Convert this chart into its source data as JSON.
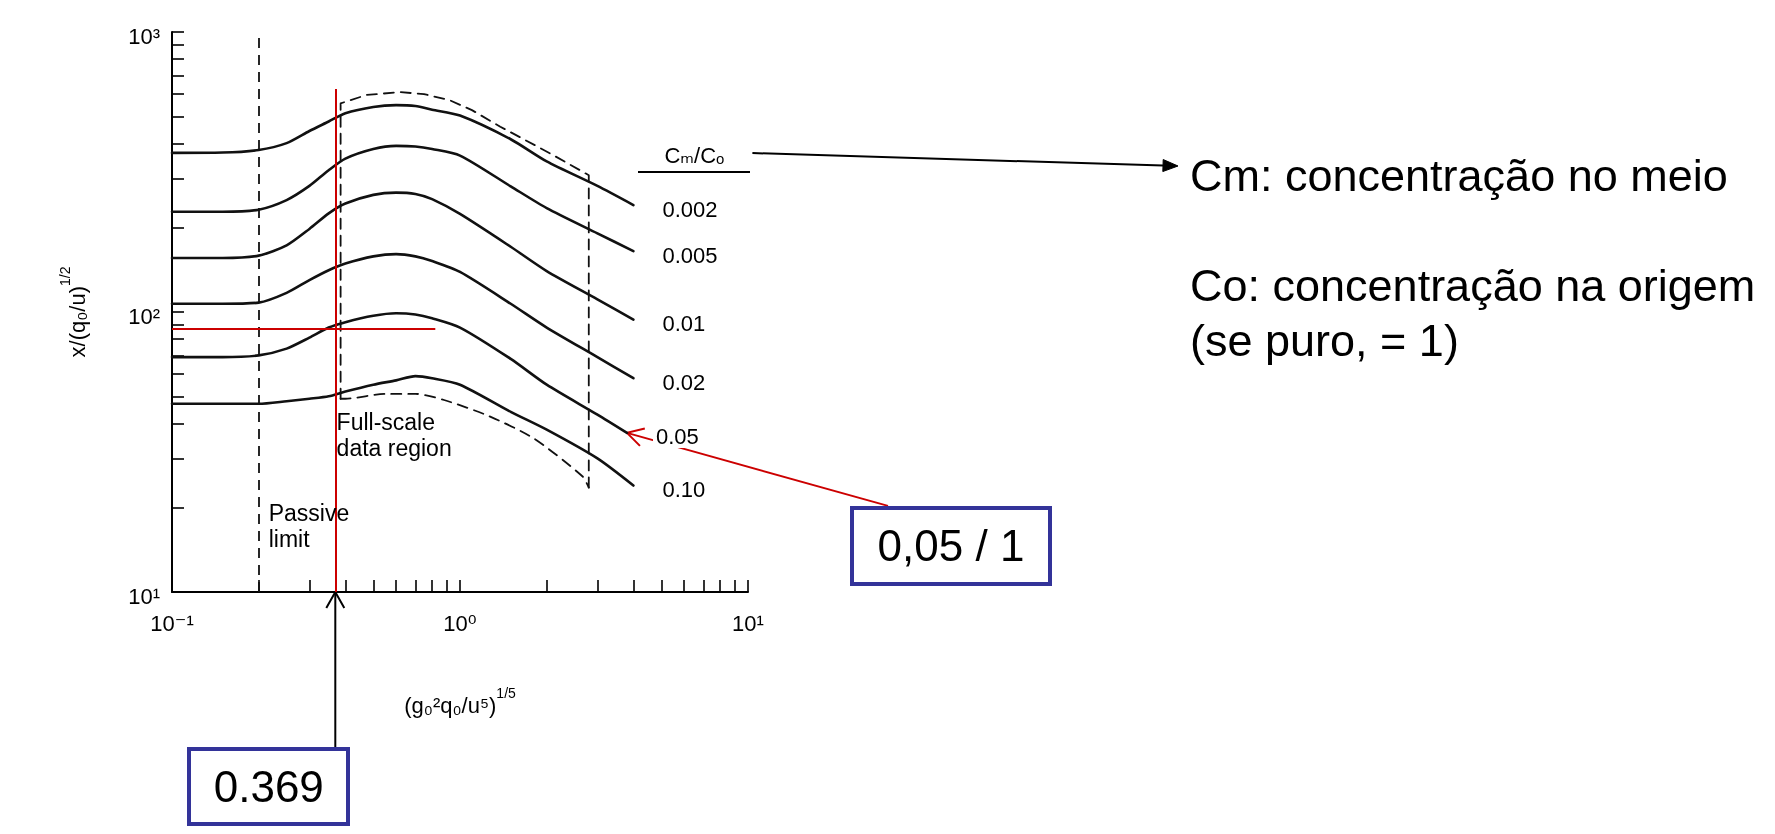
{
  "chart_data": {
    "type": "line",
    "xlabel": "(g₀²q₀/u⁵)$^{1/5}$",
    "ylabel": "x/(q₀/u)$^{1/2}$",
    "legend_title": "Cₘ/Cₒ",
    "log": "xy",
    "xlim": [
      0.1,
      10
    ],
    "xticks": [
      {
        "value": 0.1,
        "label": "10⁻¹"
      },
      {
        "value": 0.2,
        "label": null
      },
      {
        "value": 0.3,
        "label": null
      },
      {
        "value": 0.4,
        "label": null
      },
      {
        "value": 0.5,
        "label": null
      },
      {
        "value": 0.6,
        "label": null
      },
      {
        "value": 0.7,
        "label": null
      },
      {
        "value": 0.8,
        "label": null
      },
      {
        "value": 0.9,
        "label": null
      },
      {
        "value": 1,
        "label": "10⁰"
      },
      {
        "value": 2,
        "label": null
      },
      {
        "value": 3,
        "label": null
      },
      {
        "value": 4,
        "label": null
      },
      {
        "value": 5,
        "label": null
      },
      {
        "value": 6,
        "label": null
      },
      {
        "value": 7,
        "label": null
      },
      {
        "value": 8,
        "label": null
      },
      {
        "value": 9,
        "label": null
      },
      {
        "value": 10,
        "label": "10¹"
      }
    ],
    "ylim": [
      10,
      1000
    ],
    "yticks": [
      {
        "value": 10,
        "label": "10¹"
      },
      {
        "value": 20,
        "label": null
      },
      {
        "value": 30,
        "label": null
      },
      {
        "value": 40,
        "label": null
      },
      {
        "value": 50,
        "label": null
      },
      {
        "value": 60,
        "label": null
      },
      {
        "value": 70,
        "label": null
      },
      {
        "value": 80,
        "label": null
      },
      {
        "value": 90,
        "label": null
      },
      {
        "value": 100,
        "label": "10²"
      },
      {
        "value": 200,
        "label": null
      },
      {
        "value": 300,
        "label": null
      },
      {
        "value": 400,
        "label": null
      },
      {
        "value": 500,
        "label": null
      },
      {
        "value": 600,
        "label": null
      },
      {
        "value": 700,
        "label": null
      },
      {
        "value": 800,
        "label": null
      },
      {
        "value": 900,
        "label": null
      },
      {
        "value": 1000,
        "label": "10³"
      }
    ],
    "series": [
      {
        "name": "0.002",
        "color": "#111111",
        "x": [
          0.1,
          0.15,
          0.2,
          0.25,
          0.3,
          0.35,
          0.4,
          0.5,
          0.6,
          0.7,
          0.8,
          1,
          1.5,
          2,
          3,
          4
        ],
        "values": [
          370,
          371,
          379,
          401,
          443,
          479,
          513,
          540,
          548,
          544,
          528,
          503,
          414,
          345,
          282,
          241
        ]
      },
      {
        "name": "0.005",
        "color": "#111111",
        "x": [
          0.1,
          0.15,
          0.2,
          0.25,
          0.3,
          0.35,
          0.4,
          0.5,
          0.6,
          0.7,
          0.8,
          1,
          1.5,
          2,
          3,
          4
        ],
        "values": [
          228,
          228,
          232,
          251,
          282,
          321,
          353,
          382,
          392,
          390,
          382,
          362,
          281,
          235,
          191,
          165
        ]
      },
      {
        "name": "0.01",
        "color": "#111111",
        "x": [
          0.1,
          0.15,
          0.2,
          0.25,
          0.3,
          0.35,
          0.4,
          0.5,
          0.6,
          0.7,
          0.8,
          1,
          1.5,
          2,
          3,
          4
        ],
        "values": [
          156,
          156,
          159,
          173,
          198,
          225,
          244,
          262,
          267,
          264,
          253,
          224,
          171,
          140,
          111,
          94
        ]
      },
      {
        "name": "0.02",
        "color": "#111111",
        "x": [
          0.1,
          0.15,
          0.2,
          0.25,
          0.3,
          0.35,
          0.4,
          0.5,
          0.6,
          0.7,
          0.8,
          1,
          1.5,
          2,
          3,
          4
        ],
        "values": [
          107,
          107,
          108,
          117,
          130,
          141,
          149,
          158,
          161,
          158,
          152,
          139,
          107,
          88,
          69,
          58
        ]
      },
      {
        "name": "0.05",
        "color": "#111111",
        "x": [
          0.1,
          0.15,
          0.2,
          0.25,
          0.3,
          0.35,
          0.4,
          0.5,
          0.6,
          0.7,
          0.8,
          1,
          1.5,
          2,
          3,
          3.8
        ],
        "values": [
          69,
          69,
          70,
          74,
          81,
          88,
          92,
          97,
          99,
          98,
          95,
          88,
          68,
          55,
          43,
          37
        ]
      },
      {
        "name": "0.10",
        "color": "#111111",
        "x": [
          0.1,
          0.15,
          0.2,
          0.25,
          0.3,
          0.35,
          0.4,
          0.5,
          0.6,
          0.7,
          0.8,
          1,
          1.5,
          2,
          3,
          4
        ],
        "values": [
          47,
          47,
          47,
          48,
          49,
          50,
          52,
          55,
          57,
          59,
          58,
          55,
          44,
          38,
          30,
          24
        ]
      },
      {
        "name": "Full-scale data region",
        "color": "#111111",
        "line_style": "dashed",
        "x": [
          0.385,
          0.385,
          0.474,
          0.62,
          0.75,
          0.92,
          1.1,
          1.38,
          1.65,
          2.05,
          2.8,
          2.8
        ],
        "values": [
          49,
          556,
          596,
          610,
          600,
          571,
          526,
          459,
          416,
          369,
          308,
          23.6
        ]
      },
      {
        "color": "#111111",
        "line_style": "dashed",
        "x": [
          0.385,
          0.4,
          0.55,
          0.7,
          0.88,
          1.26,
          1.8,
          2.66,
          2.8
        ],
        "values": [
          49,
          49,
          51,
          51,
          48.5,
          42.5,
          35.4,
          25.9,
          23.6
        ]
      }
    ],
    "ref_lines": [
      {
        "axis": "x",
        "value": 0.2,
        "label": "Passive limit",
        "line_style": "dashed",
        "color": "#111111"
      },
      {
        "axis": "x",
        "value": 0.369,
        "color": "#cc0000"
      },
      {
        "axis": "y",
        "value": 87,
        "color": "#cc0000"
      }
    ],
    "annotations": [
      {
        "text": "0.369",
        "x": 0.369,
        "y": 10
      },
      {
        "text": "0,05 / 1",
        "x": 3.8,
        "y": 37
      },
      "Cm: concentração no meio",
      "Co: concentração na origem (se puro, = 1)"
    ]
  }
}
